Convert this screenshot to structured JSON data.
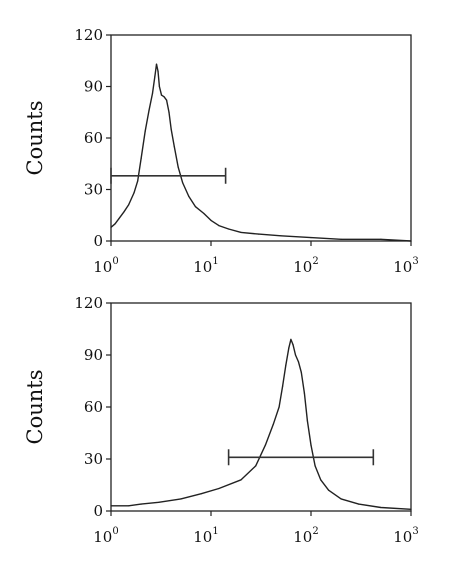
{
  "chart_data": [
    {
      "type": "line",
      "title": "",
      "xlabel": "",
      "ylabel": "Counts",
      "xscale": "log",
      "xlim": [
        1,
        1000
      ],
      "ylim": [
        0,
        120
      ],
      "grid": false,
      "x_ticks": [
        {
          "base": "10",
          "exp": "0"
        },
        {
          "base": "10",
          "exp": "1"
        },
        {
          "base": "10",
          "exp": "2"
        },
        {
          "base": "10",
          "exp": "3"
        }
      ],
      "y_ticks": [
        "0",
        "30",
        "60",
        "90",
        "120"
      ],
      "series": [
        {
          "x": [
            1.0,
            1.1,
            1.2,
            1.35,
            1.5,
            1.7,
            1.85,
            2.0,
            2.2,
            2.4,
            2.6,
            2.75,
            2.85,
            2.95,
            3.05,
            3.2,
            3.4,
            3.6,
            3.8,
            4.0,
            4.3,
            4.7,
            5.2,
            6.0,
            7.0,
            8.5,
            10,
            12,
            15,
            20,
            30,
            50,
            100,
            200,
            500,
            1000
          ],
          "y": [
            8,
            10,
            13,
            17,
            21,
            28,
            35,
            48,
            64,
            76,
            86,
            96,
            103,
            99,
            90,
            85,
            84,
            82,
            75,
            65,
            55,
            43,
            34,
            26,
            20,
            16,
            12,
            9,
            7,
            5,
            4,
            3,
            2,
            1,
            1,
            0
          ]
        }
      ],
      "gate": {
        "from": 1.0,
        "to": 14,
        "y": 38
      }
    },
    {
      "type": "line",
      "title": "",
      "xlabel": "",
      "ylabel": "Counts",
      "xscale": "log",
      "xlim": [
        1,
        1000
      ],
      "ylim": [
        0,
        120
      ],
      "grid": false,
      "x_ticks": [
        {
          "base": "10",
          "exp": "0"
        },
        {
          "base": "10",
          "exp": "1"
        },
        {
          "base": "10",
          "exp": "2"
        },
        {
          "base": "10",
          "exp": "3"
        }
      ],
      "y_ticks": [
        "0",
        "30",
        "60",
        "90",
        "120"
      ],
      "series": [
        {
          "x": [
            1.0,
            1.5,
            2,
            3,
            5,
            8,
            12,
            20,
            28,
            35,
            42,
            48,
            52,
            56,
            60,
            63,
            66,
            70,
            75,
            80,
            86,
            92,
            100,
            110,
            125,
            150,
            200,
            300,
            500,
            1000
          ],
          "y": [
            3,
            3,
            4,
            5,
            7,
            10,
            13,
            18,
            26,
            38,
            50,
            60,
            72,
            84,
            94,
            99,
            96,
            90,
            86,
            80,
            68,
            52,
            38,
            26,
            18,
            12,
            7,
            4,
            2,
            1
          ]
        }
      ],
      "gate": {
        "from": 15,
        "to": 420,
        "y": 31
      }
    }
  ]
}
